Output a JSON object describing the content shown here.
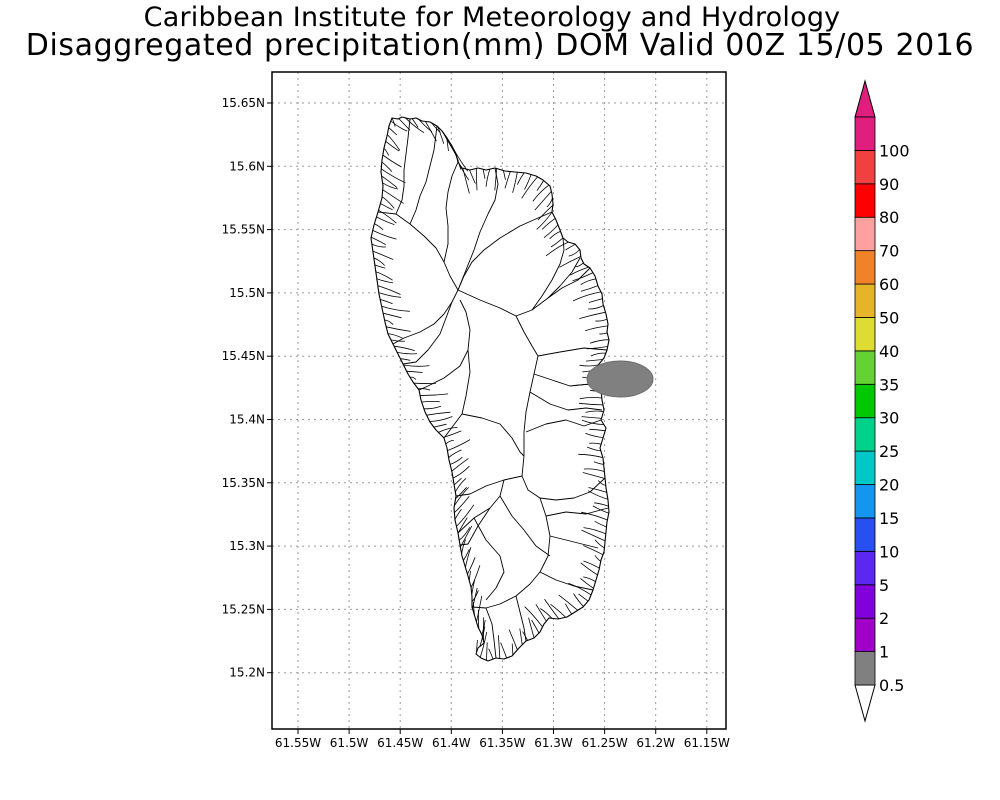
{
  "header": {
    "line1": "Caribbean Institute for Meteorology and Hydrology",
    "line2": "Disaggregated precipitation(mm) DOM Valid 00Z 15/05 2016"
  },
  "map": {
    "region": "Dominica",
    "lon_ticks": [
      "61.55W",
      "61.5W",
      "61.45W",
      "61.4W",
      "61.35W",
      "61.3W",
      "61.25W",
      "61.2W",
      "61.15W"
    ],
    "lat_ticks": [
      "15.65N",
      "15.6N",
      "15.55N",
      "15.5N",
      "15.45N",
      "15.4N",
      "15.35N",
      "15.3N",
      "15.25N",
      "15.2N"
    ],
    "lon_range": [
      -61.575,
      -61.14
    ],
    "lat_range": [
      15.155,
      15.675
    ],
    "grid": "dotted",
    "precip_areas": [
      {
        "center_lon": -61.235,
        "center_lat": 15.43,
        "value_band": "0.5-1"
      }
    ]
  },
  "colorbar": {
    "levels": [
      "0.5",
      "1",
      "2",
      "5",
      "10",
      "15",
      "20",
      "25",
      "30",
      "35",
      "40",
      "50",
      "60",
      "70",
      "80",
      "90",
      "100"
    ],
    "colors": [
      "#808080",
      "#a000c8",
      "#8200dc",
      "#5a28f0",
      "#2850f0",
      "#1496f0",
      "#00c8c8",
      "#00d28c",
      "#00c800",
      "#64d232",
      "#dcdc32",
      "#e6b428",
      "#f08228",
      "#ffa0a0",
      "#ff0000",
      "#f04040",
      "#e01e7e"
    ],
    "lower_extension_color": "#ffffff",
    "upper_extension_color": "#e01e7e"
  }
}
